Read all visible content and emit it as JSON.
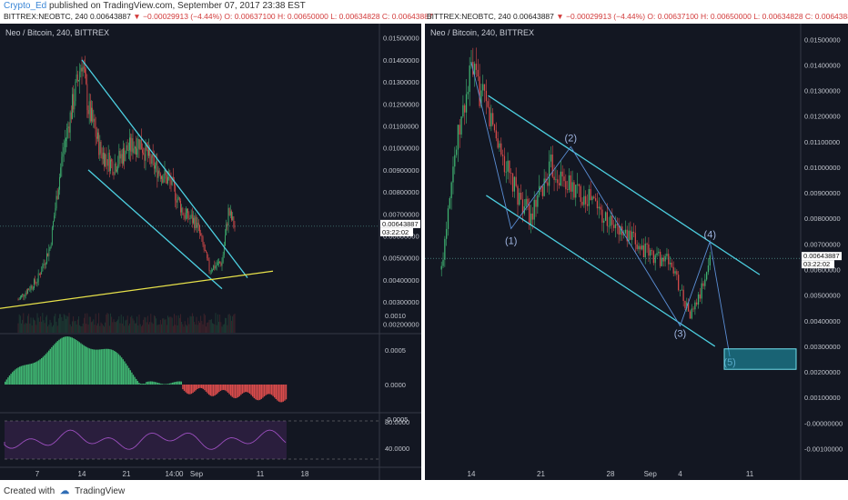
{
  "header": {
    "user": "Crypto_Ed",
    "published": "published on TradingView.com, September 07, 2017 23:38 EST"
  },
  "infobar": {
    "symbol": "BITTREX:NEOBTC, 240",
    "last": "0.00643887",
    "change": "−0.00029913 (−4.44%)",
    "o": "O: 0.00637100",
    "h": "H: 0.00650000",
    "l": "L: 0.00634828",
    "c": "C: 0.00643887"
  },
  "colors": {
    "bg": "#131722",
    "up": "#3fb371",
    "down": "#d84b4b",
    "channel": "#4dd0e1",
    "support": "#e8e24a",
    "rsi": "#9c4fbf",
    "target_box": "#1fa3b8"
  },
  "icons": [
    "down-triangle-icon",
    "tradingview-logo-icon"
  ],
  "footer": {
    "created_with": "Created with",
    "brand": "TradingView"
  },
  "chart_data": [
    {
      "type": "candlestick",
      "title": "Neo / Bitcoin, 240, BITTREX",
      "last_price_label": "0.00643887",
      "countdown_label": "03:22:02",
      "y_ticks": [
        "0.01500000",
        "0.01400000",
        "0.01300000",
        "0.01200000",
        "0.01100000",
        "0.01000000",
        "0.00900000",
        "0.00800000",
        "0.00700000",
        "0.00600000",
        "0.00500000",
        "0.00400000",
        "0.00300000",
        "0.00200000"
      ],
      "x_ticks": [
        "7",
        "14",
        "21",
        "14:00",
        "Sep",
        "11",
        "18"
      ],
      "ylim": [
        0.0016,
        0.0154
      ],
      "approx_close_path": [
        {
          "x": "Aug 4",
          "y": 0.0031
        },
        {
          "x": "Aug 7",
          "y": 0.004
        },
        {
          "x": "Aug 9",
          "y": 0.0055
        },
        {
          "x": "Aug 11",
          "y": 0.0098
        },
        {
          "x": "Aug 14",
          "y": 0.014
        },
        {
          "x": "Aug 15",
          "y": 0.0118
        },
        {
          "x": "Aug 17",
          "y": 0.0098
        },
        {
          "x": "Aug 19",
          "y": 0.0092
        },
        {
          "x": "Aug 21",
          "y": 0.0099
        },
        {
          "x": "Aug 23",
          "y": 0.0103
        },
        {
          "x": "Aug 25",
          "y": 0.0093
        },
        {
          "x": "Aug 28",
          "y": 0.0084
        },
        {
          "x": "Aug 30",
          "y": 0.007
        },
        {
          "x": "Sep 1",
          "y": 0.0066
        },
        {
          "x": "Sep 3",
          "y": 0.0045
        },
        {
          "x": "Sep 5",
          "y": 0.0048
        },
        {
          "x": "Sep 6",
          "y": 0.0071
        },
        {
          "x": "Sep 7",
          "y": 0.0064
        }
      ],
      "annotations": {
        "channel_upper": [
          {
            "x": "Aug 14",
            "y": 0.014
          },
          {
            "x": "Sep 9",
            "y": 0.0041
          }
        ],
        "channel_lower": [
          {
            "x": "Aug 15",
            "y": 0.009
          },
          {
            "x": "Sep 5",
            "y": 0.0036
          }
        ],
        "support_line": [
          {
            "x": "Aug 1",
            "y": 0.0027
          },
          {
            "x": "Sep 13",
            "y": 0.0044
          }
        ]
      },
      "indicators": [
        {
          "name": "histogram oscillator",
          "ticks": [
            "0.0010",
            "0.0005",
            "0.0000",
            "-0.0005"
          ]
        },
        {
          "name": "rsi",
          "ticks": [
            "80.0000",
            "40.0000"
          ]
        }
      ]
    },
    {
      "type": "candlestick",
      "title": "Neo / Bitcoin, 240, BITTREX",
      "last_price_label": "0.00643887",
      "countdown_label": "03:22:02",
      "y_ticks": [
        "0.01500000",
        "0.01400000",
        "0.01300000",
        "0.01200000",
        "0.01100000",
        "0.01000000",
        "0.00900000",
        "0.00800000",
        "0.00700000",
        "0.00600000",
        "0.00500000",
        "0.00400000",
        "0.00300000",
        "0.00200000",
        "0.00100000",
        "-0.00000000",
        "-0.00100000"
      ],
      "x_ticks": [
        "14",
        "21",
        "28",
        "Sep",
        "4",
        "11"
      ],
      "ylim": [
        -0.0018,
        0.0154
      ],
      "approx_close_path": [
        {
          "x": "Aug 11",
          "y": 0.006
        },
        {
          "x": "Aug 12",
          "y": 0.0098
        },
        {
          "x": "Aug 14",
          "y": 0.0138
        },
        {
          "x": "Aug 16",
          "y": 0.0118
        },
        {
          "x": "Aug 18",
          "y": 0.0094
        },
        {
          "x": "Aug 20",
          "y": 0.008
        },
        {
          "x": "Aug 22",
          "y": 0.01
        },
        {
          "x": "Aug 24",
          "y": 0.0092
        },
        {
          "x": "Aug 26",
          "y": 0.0088
        },
        {
          "x": "Aug 28",
          "y": 0.0078
        },
        {
          "x": "Aug 30",
          "y": 0.0072
        },
        {
          "x": "Sep 1",
          "y": 0.0066
        },
        {
          "x": "Sep 3",
          "y": 0.0063
        },
        {
          "x": "Sep 5",
          "y": 0.0042
        },
        {
          "x": "Sep 6",
          "y": 0.005
        },
        {
          "x": "Sep 7",
          "y": 0.0064
        }
      ],
      "wave_labels": [
        "(1)",
        "(2)",
        "(3)",
        "(4)",
        "(5)"
      ],
      "wave_points": [
        {
          "label": "(1)",
          "x": "Aug 18",
          "y": 0.0076
        },
        {
          "label": "(2)",
          "x": "Aug 24",
          "y": 0.0108
        },
        {
          "label": "(3)",
          "x": "Sep 4",
          "y": 0.0038
        },
        {
          "label": "(4)",
          "x": "Sep 7",
          "y": 0.0071
        },
        {
          "label": "(5)",
          "x": "Sep 9",
          "y": 0.0026
        }
      ],
      "target_zone": {
        "y_low": 0.0021,
        "y_high": 0.0029
      }
    }
  ]
}
